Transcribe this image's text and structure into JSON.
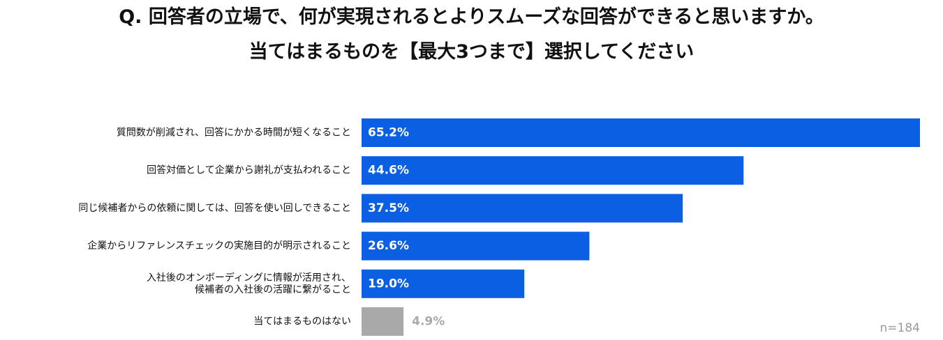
{
  "title_lines": [
    "Q. 回答者の立場で、何が実現されるとよりスムーズな回答ができると思いますか。",
    "当てはまるものを【最大3つまで】選択してください"
  ],
  "note": "n=184",
  "colors": {
    "primary": "#0a5fe2",
    "other": "#a9a9a9",
    "text_on_bar": "#ffffff",
    "text_other": "#a9a9a9"
  },
  "chart_data": {
    "type": "bar",
    "orientation": "horizontal",
    "categories": [
      [
        "質問数が削減され、回答にかかる時間が短くなること"
      ],
      [
        "回答対価として企業から謝礼が支払われること"
      ],
      [
        "同じ候補者からの依頼に関しては、回答を使い回しできること"
      ],
      [
        "企業からリファレンスチェックの実施目的が明示されること"
      ],
      [
        "入社後のオンボーディングに情報が活用され、",
        "候補者の入社後の活躍に繋がること"
      ],
      [
        "当てはまるものはない"
      ]
    ],
    "values": [
      65.2,
      44.6,
      37.5,
      26.6,
      19.0,
      4.9
    ],
    "value_labels": [
      "65.2%",
      "44.6%",
      "37.5%",
      "26.6%",
      "19.0%",
      "4.9%"
    ],
    "highlight": [
      "primary",
      "primary",
      "primary",
      "primary",
      "primary",
      "other"
    ],
    "xlim": [
      0,
      65.2
    ],
    "grid": false,
    "legend": "none"
  }
}
